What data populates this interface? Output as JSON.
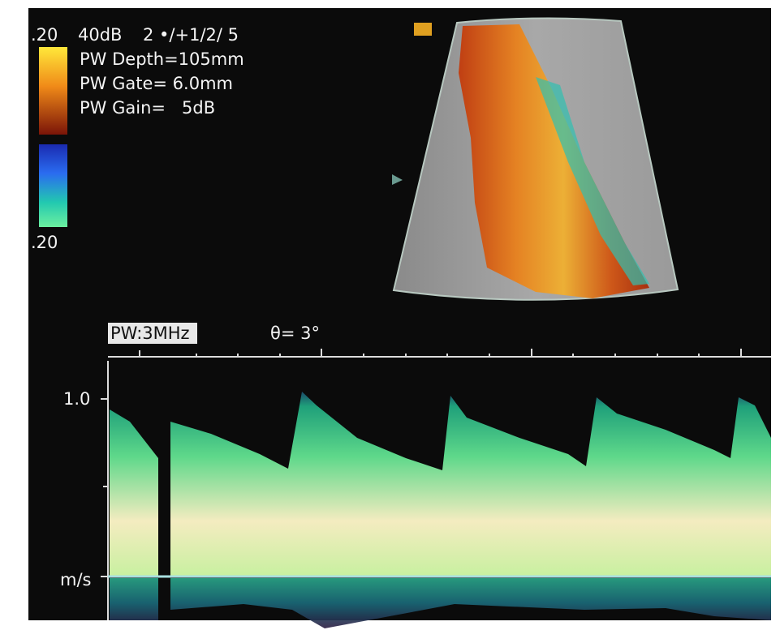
{
  "header": {
    "scale_top": ".20",
    "gain": "40dB",
    "settings": "2 •/+1/2/ 5",
    "depth": "PW Depth=105mm",
    "gate": "PW Gate= 6.0mm",
    "pw_gain": "PW Gain=   5dB",
    "scale_bottom": ".20"
  },
  "doppler": {
    "mode": "PW:3MHz",
    "angle": "θ= 3°",
    "velocity_tick": "1.0",
    "unit": "m/s"
  }
}
